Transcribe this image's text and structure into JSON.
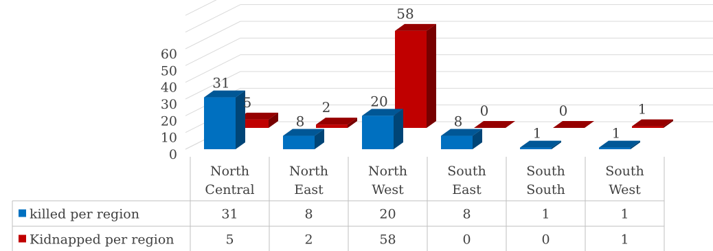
{
  "chart_data": {
    "type": "bar",
    "subtype": "3d-clustered-column-with-data-table",
    "categories": [
      [
        "North",
        "Central"
      ],
      [
        "North",
        "East"
      ],
      [
        "North",
        "West"
      ],
      [
        "South",
        "East"
      ],
      [
        "South",
        "South"
      ],
      [
        "South",
        "West"
      ]
    ],
    "series": [
      {
        "name": "killed per region",
        "values": [
          31,
          8,
          20,
          8,
          1,
          1
        ],
        "color": "#0070C0"
      },
      {
        "name": "Kidnapped per region",
        "values": [
          5,
          2,
          58,
          0,
          0,
          1
        ],
        "color": "#C00000"
      }
    ],
    "y_ticks": [
      "0",
      "10",
      "20",
      "30",
      "40",
      "50",
      "60"
    ],
    "ylim": [
      0,
      60
    ],
    "grid": true,
    "data_table": true,
    "legend": "in-table"
  }
}
